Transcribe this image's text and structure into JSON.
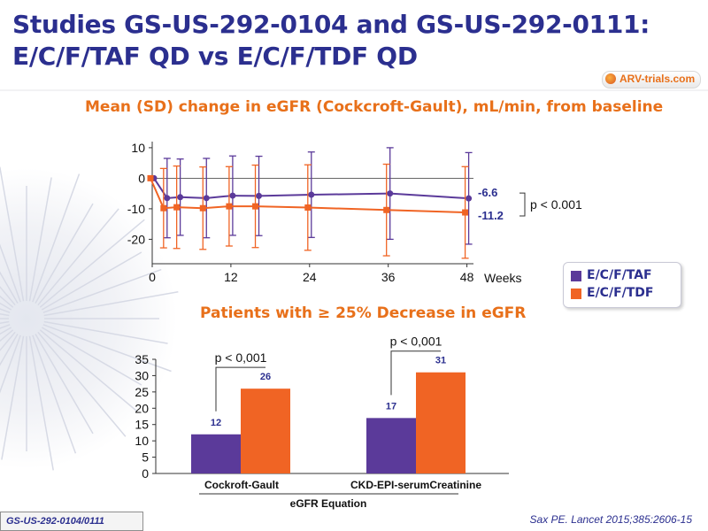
{
  "slide": {
    "title_line1": "Studies GS-US-292-0104 and GS-US-292-0111:",
    "title_line2": "E/C/F/TAF QD vs E/C/F/TDF QD",
    "logo_text": "ARV-trials.com",
    "footer_left": "GS-US-292-0104/0111",
    "footer_right": "Sax PE. Lancet 2015;385:2606-15"
  },
  "legend": [
    {
      "label": "E/C/F/TAF",
      "color": "#5b3a9a"
    },
    {
      "label": "E/C/F/TDF",
      "color": "#f06424"
    }
  ],
  "chart_data": [
    {
      "type": "line",
      "title": "Mean (SD) change in eGFR (Cockcroft-Gault), mL/min, from baseline",
      "xlabel": "Weeks",
      "ylabel": "",
      "x_ticks": [
        0,
        12,
        24,
        36,
        48
      ],
      "y_ticks": [
        10,
        0,
        -10,
        -20
      ],
      "xlim": [
        0,
        49
      ],
      "ylim": [
        -28,
        12
      ],
      "annotation": "p < 0.001",
      "series": [
        {
          "name": "E/C/F/TAF",
          "color": "#5b3a9a",
          "x": [
            0,
            2,
            4,
            8,
            12,
            16,
            24,
            36,
            48
          ],
          "y": [
            0,
            -6.5,
            -6.2,
            -6.5,
            -5.7,
            -5.8,
            -5.4,
            -5.0,
            -6.6
          ],
          "sd": [
            0,
            13,
            12.5,
            13,
            13,
            13,
            14,
            15,
            15
          ],
          "end_label": "-6.6"
        },
        {
          "name": "E/C/F/TDF",
          "color": "#f06424",
          "x": [
            0,
            2,
            4,
            8,
            12,
            16,
            24,
            36,
            48
          ],
          "y": [
            0,
            -9.8,
            -9.5,
            -9.8,
            -9.2,
            -9.2,
            -9.6,
            -10.4,
            -11.2
          ],
          "sd": [
            0,
            13,
            13.5,
            13.5,
            13,
            13.5,
            14,
            15,
            15
          ],
          "end_label": "-11.2"
        }
      ]
    },
    {
      "type": "bar",
      "title": "Patients with ≥ 25% Decrease in eGFR",
      "xlabel": "eGFR Equation",
      "ylabel": "",
      "categories": [
        "Cockroft-Gault",
        "CKD-EPI-serumCreatinine"
      ],
      "ylim": [
        0,
        35
      ],
      "y_ticks": [
        0,
        5,
        10,
        15,
        20,
        25,
        30,
        35
      ],
      "series": [
        {
          "name": "E/C/F/TAF",
          "color": "#5b3a9a",
          "values": [
            12,
            17
          ]
        },
        {
          "name": "E/C/F/TDF",
          "color": "#f06424",
          "values": [
            26,
            31
          ]
        }
      ],
      "annotations": [
        "p < 0,001",
        "p < 0,001"
      ]
    }
  ]
}
